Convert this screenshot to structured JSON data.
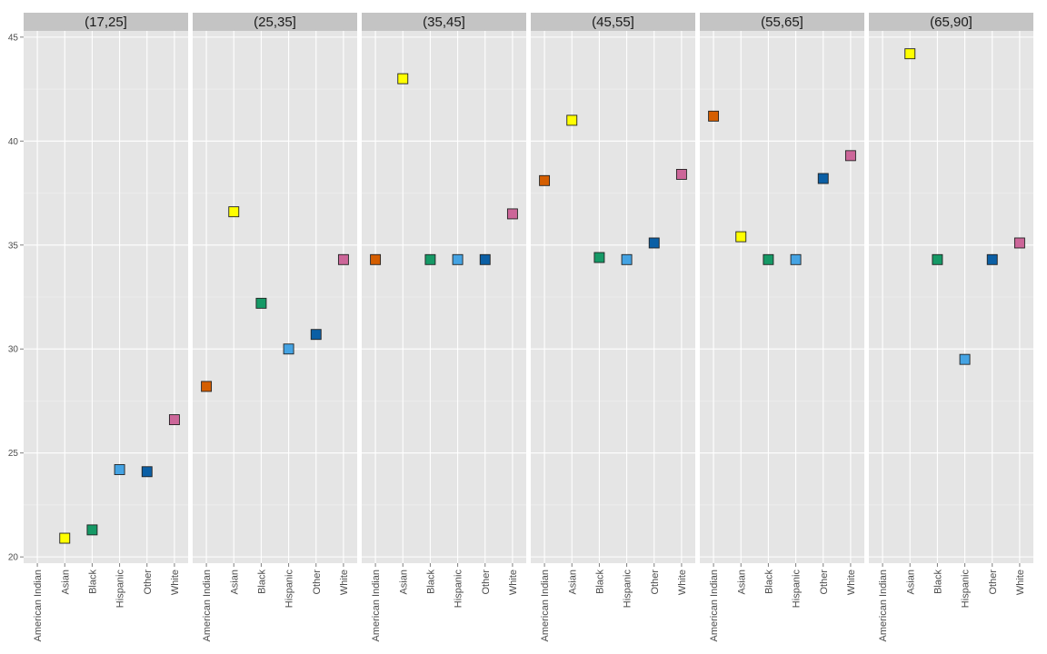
{
  "chart_data": {
    "type": "scatter",
    "facet_by": "age group",
    "categories": [
      "American Indian",
      "Asian",
      "Black",
      "Hispanic",
      "Other",
      "White"
    ],
    "category_colors": {
      "American Indian": "#D55E00",
      "Asian": "#FFFF00",
      "Black": "#159966",
      "Hispanic": "#44A3E3",
      "Other": "#0B5FA5",
      "White": "#CC6699"
    },
    "ylim": [
      19.7,
      45.3
    ],
    "yticks": [
      "20",
      "25",
      "30",
      "35",
      "40",
      "45"
    ],
    "grid": true,
    "marker": "square",
    "xlabel": "",
    "ylabel": "",
    "title": "",
    "panels": [
      {
        "label": "(17,25]",
        "values": [
          null,
          20.9,
          21.3,
          24.2,
          24.1,
          26.6
        ]
      },
      {
        "label": "(25,35]",
        "values": [
          28.2,
          36.6,
          32.2,
          30.0,
          30.7,
          34.3
        ]
      },
      {
        "label": "(35,45]",
        "values": [
          34.3,
          43.0,
          34.3,
          34.3,
          34.3,
          36.5
        ]
      },
      {
        "label": "(45,55]",
        "values": [
          38.1,
          41.0,
          34.4,
          34.3,
          35.1,
          38.4
        ]
      },
      {
        "label": "(55,65]",
        "values": [
          41.2,
          35.4,
          34.3,
          34.3,
          38.2,
          39.3
        ]
      },
      {
        "label": "(65,90]",
        "values": [
          null,
          44.2,
          34.3,
          29.5,
          34.3,
          35.1
        ]
      }
    ]
  }
}
